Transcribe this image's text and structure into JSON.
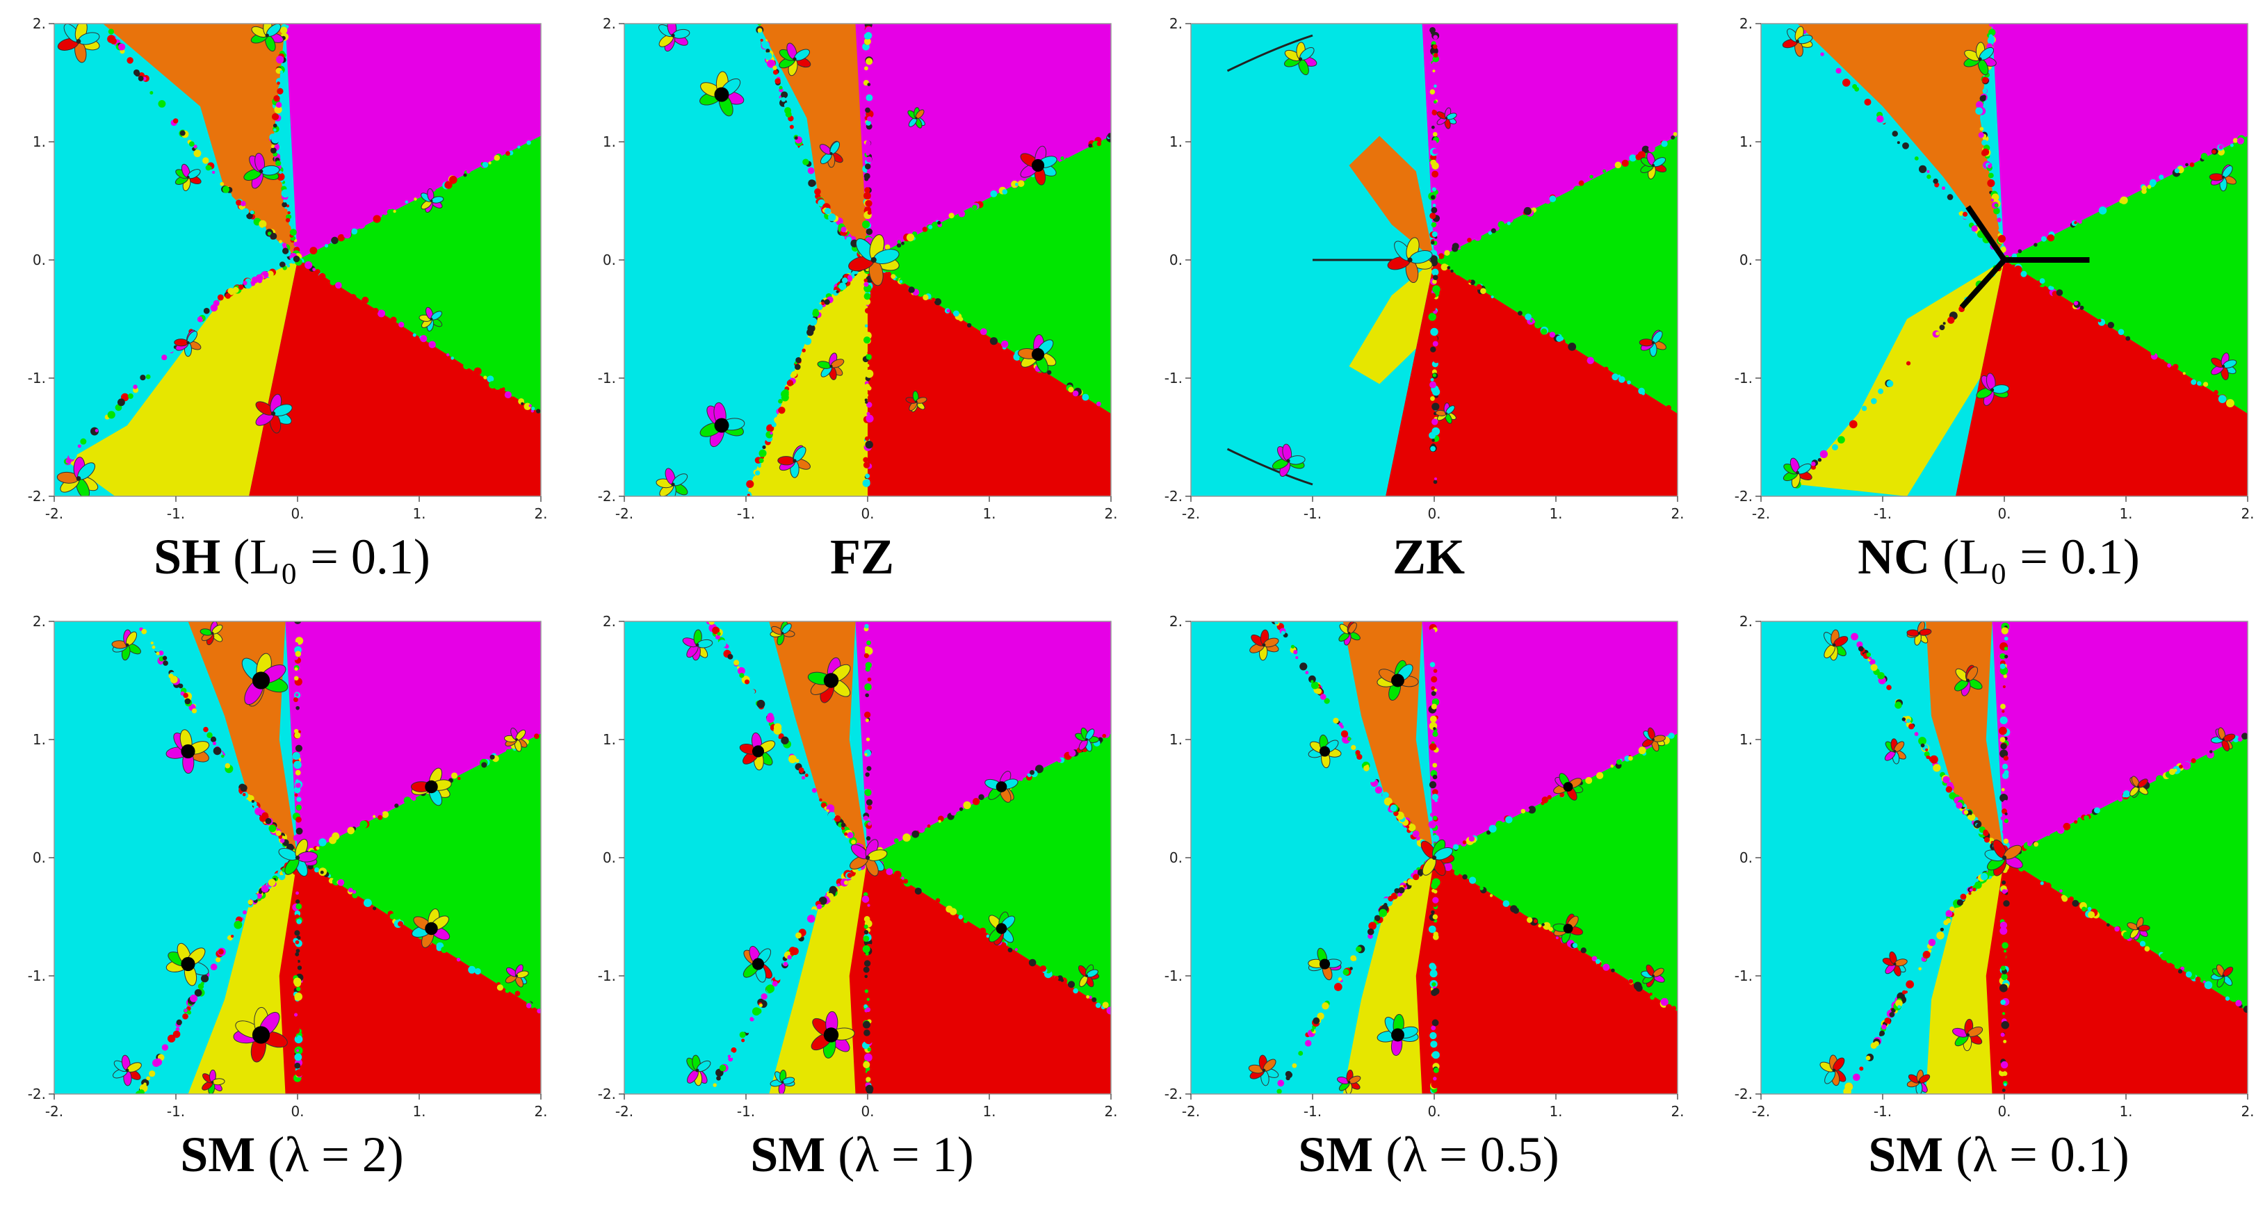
{
  "axis": {
    "x_ticks": [
      "-2.",
      "-1.",
      "0.",
      "1.",
      "2."
    ],
    "y_ticks": [
      "2.",
      "1.",
      "0.",
      "-1.",
      "-2."
    ],
    "range": [
      -2,
      2
    ]
  },
  "colors": {
    "cyan": "#00e6e6",
    "orange": "#e8730c",
    "magenta": "#e600e6",
    "green": "#00e600",
    "red": "#e60000",
    "yellow": "#e6e600",
    "black": "#000000"
  },
  "panels": [
    {
      "name": "SH",
      "param": "(L₀ = 0.1)",
      "style": "SH"
    },
    {
      "name": "FZ",
      "param": "",
      "style": "FZ"
    },
    {
      "name": "ZK",
      "param": "",
      "style": "ZK"
    },
    {
      "name": "NC",
      "param": "(L₀ = 0.1)",
      "style": "NC"
    },
    {
      "name": "SM",
      "param": "(λ = 2)",
      "style": "SM2"
    },
    {
      "name": "SM",
      "param": "(λ = 1)",
      "style": "SM1"
    },
    {
      "name": "SM",
      "param": "(λ = 0.5)",
      "style": "SM05"
    },
    {
      "name": "SM",
      "param": "(λ = 0.1)",
      "style": "SM01"
    }
  ]
}
